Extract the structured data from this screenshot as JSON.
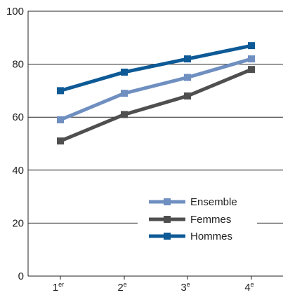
{
  "chart_data": {
    "type": "line",
    "title": "",
    "xlabel": "",
    "ylabel": "",
    "categories": [
      {
        "base": "1",
        "sup": "er"
      },
      {
        "base": "2",
        "sup": "e"
      },
      {
        "base": "3",
        "sup": "e"
      },
      {
        "base": "4",
        "sup": "e"
      }
    ],
    "ylim": [
      0,
      100
    ],
    "yticks": [
      0,
      20,
      40,
      60,
      80,
      100
    ],
    "grid": "horizontal",
    "legend": "lower-right",
    "series": [
      {
        "name": "Ensemble",
        "color": "#6f8fc0",
        "values": [
          59,
          69,
          75,
          82
        ]
      },
      {
        "name": "Femmes",
        "color": "#4f4f4f",
        "values": [
          51,
          61,
          68,
          78
        ]
      },
      {
        "name": "Hommes",
        "color": "#0d5a96",
        "values": [
          70,
          77,
          82,
          87
        ]
      }
    ]
  }
}
